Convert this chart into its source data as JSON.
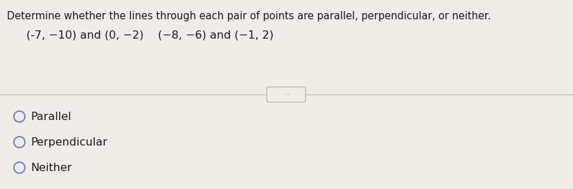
{
  "title": "Determine whether the lines through each pair of points are parallel, perpendicular, or neither.",
  "subtitle": "(-7, −10) and (0, −2)    (−8, −6) and (−1, 2)",
  "options": [
    "Parallel",
    "Perpendicular",
    "Neither"
  ],
  "bg_color": "#f0ede8",
  "text_color": "#1a1a1a",
  "title_fontsize": 10.5,
  "subtitle_fontsize": 11.5,
  "option_fontsize": 11.5,
  "divider_color": "#c0bbb5",
  "circle_edge_color": "#6a7fd0",
  "circle_face_color": "#f0ede8",
  "ellipsis_color": "#888880",
  "ellipsis_box_edge": "#b0aba5"
}
